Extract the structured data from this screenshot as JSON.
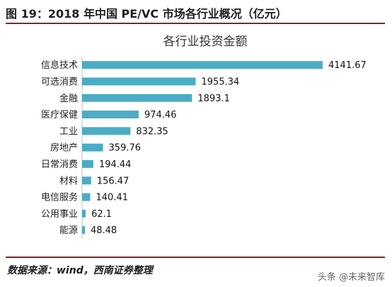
{
  "figure": {
    "title": "图 19：2018 年中国 PE/VC 市场各行业概况（亿元）",
    "source": "数据来源：wind，西南证券整理",
    "watermark": "头条 @未来智库"
  },
  "colors": {
    "bar": "#4bacc6",
    "rule": "#9b1b1b"
  },
  "chart_data": {
    "type": "bar",
    "orientation": "horizontal",
    "title": "各行业投资金额",
    "categories": [
      "信息技术",
      "可选消费",
      "金融",
      "医疗保健",
      "工业",
      "房地产",
      "日常消费",
      "材料",
      "电信服务",
      "公用事业",
      "能源"
    ],
    "values": [
      4141.67,
      1955.34,
      1893.1,
      974.46,
      832.35,
      359.76,
      194.44,
      156.47,
      140.41,
      62.1,
      48.48
    ],
    "value_labels": [
      "4141.67",
      "1955.34",
      "1893.1",
      "974.46",
      "832.35",
      "359.76",
      "194.44",
      "156.47",
      "140.41",
      "62.1",
      "48.48"
    ],
    "xlim": [
      0,
      4141.67
    ],
    "grid": false,
    "legend": "none"
  }
}
